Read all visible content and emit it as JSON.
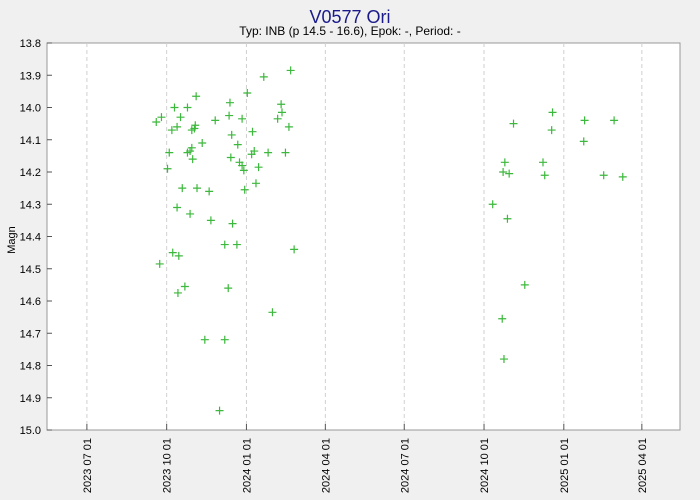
{
  "chart_data": {
    "type": "scatter",
    "title": "V0577 Ori",
    "subtitle": "Typ: INB (p 14.5 - 16.6), Epok: -, Period: -",
    "y_label": "Magn",
    "color": "#3cb83c",
    "grid": true,
    "x": [
      "2023 09 19",
      "2023 09 25",
      "2023 10 04",
      "2023 10 02",
      "2023 10 07",
      "2023 10 10",
      "2023 10 13",
      "2023 10 17",
      "2023 10 08",
      "2023 10 15",
      "2023 09 23",
      "2023 10 14",
      "2023 10 22",
      "2023 10 13",
      "2023 10 19",
      "2023 10 25",
      "2023 10 25",
      "2023 10 28",
      "2023 10 30",
      "2023 10 31",
      "2023 10 30",
      "2023 11 02",
      "2023 11 03",
      "2023 11 04",
      "2023 10 28",
      "2023 11 05",
      "2023 11 11",
      "2023 11 14",
      "2023 11 19",
      "2023 11 21",
      "2023 11 26",
      "2023 12 01",
      "2023 12 07",
      "2023 12 07",
      "2023 12 11",
      "2023 12 12",
      "2023 12 13",
      "2023 12 14",
      "2023 12 15",
      "2023 12 16",
      "2023 12 21",
      "2023 12 22",
      "2023 12 24",
      "2023 12 27",
      "2023 12 27",
      "2023 12 29",
      "2023 12 30",
      "2024 01 02",
      "2024 01 07",
      "2024 01 10",
      "2024 01 08",
      "2024 01 12",
      "2024 01 15",
      "2024 01 21",
      "2024 01 26",
      "2024 01 31",
      "2024 02 06",
      "2024 02 10",
      "2024 02 11",
      "2024 02 15",
      "2024 02 19",
      "2024 02 21",
      "2024 02 25",
      "2024 10 11",
      "2024 10 22",
      "2024 10 23",
      "2024 10 25",
      "2024 10 24",
      "2024 10 28",
      "2024 10 30",
      "2024 11 04",
      "2024 11 17",
      "2024 12 08",
      "2024 12 10",
      "2024 12 18",
      "2024 12 19",
      "2025 01 24",
      "2025 01 25",
      "2025 02 16",
      "2025 02 28",
      "2025 03 10"
    ],
    "values": [
      14.045,
      14.03,
      14.14,
      14.19,
      14.07,
      14.0,
      14.06,
      14.03,
      14.45,
      14.46,
      14.485,
      14.575,
      14.555,
      14.31,
      14.25,
      14.0,
      14.14,
      14.135,
      14.125,
      14.16,
      14.07,
      14.065,
      14.055,
      13.965,
      14.33,
      14.25,
      14.11,
      14.72,
      14.26,
      14.35,
      14.04,
      14.94,
      14.425,
      14.72,
      14.56,
      14.025,
      13.985,
      14.155,
      14.085,
      14.36,
      14.425,
      14.115,
      14.17,
      14.035,
      14.18,
      14.195,
      14.255,
      13.955,
      14.145,
      14.135,
      14.075,
      14.235,
      14.185,
      13.905,
      14.14,
      14.635,
      14.035,
      13.99,
      14.015,
      14.14,
      14.06,
      13.885,
      14.44,
      14.3,
      14.655,
      14.2,
      14.17,
      14.78,
      14.345,
      14.205,
      14.05,
      14.55,
      14.17,
      14.21,
      14.07,
      14.015,
      14.105,
      14.04,
      14.21,
      14.04,
      14.215
    ],
    "xlim": [
      "2023 05 16",
      "2025 05 15"
    ],
    "xticks": [
      "2023 07 01",
      "2023 10 01",
      "2024 01 01",
      "2024 04 01",
      "2024 07 01",
      "2024 10 01",
      "2025 01 01",
      "2025 04 01"
    ],
    "ylim": [
      15,
      13.8
    ],
    "yticks": [
      13.8,
      13.9,
      {
        "value": 14,
        "label": "14.0"
      },
      14.1,
      14.2,
      14.3,
      14.4,
      14.5,
      14.6,
      14.7,
      14.8,
      14.9,
      {
        "value": 15,
        "label": "15.0"
      }
    ]
  }
}
